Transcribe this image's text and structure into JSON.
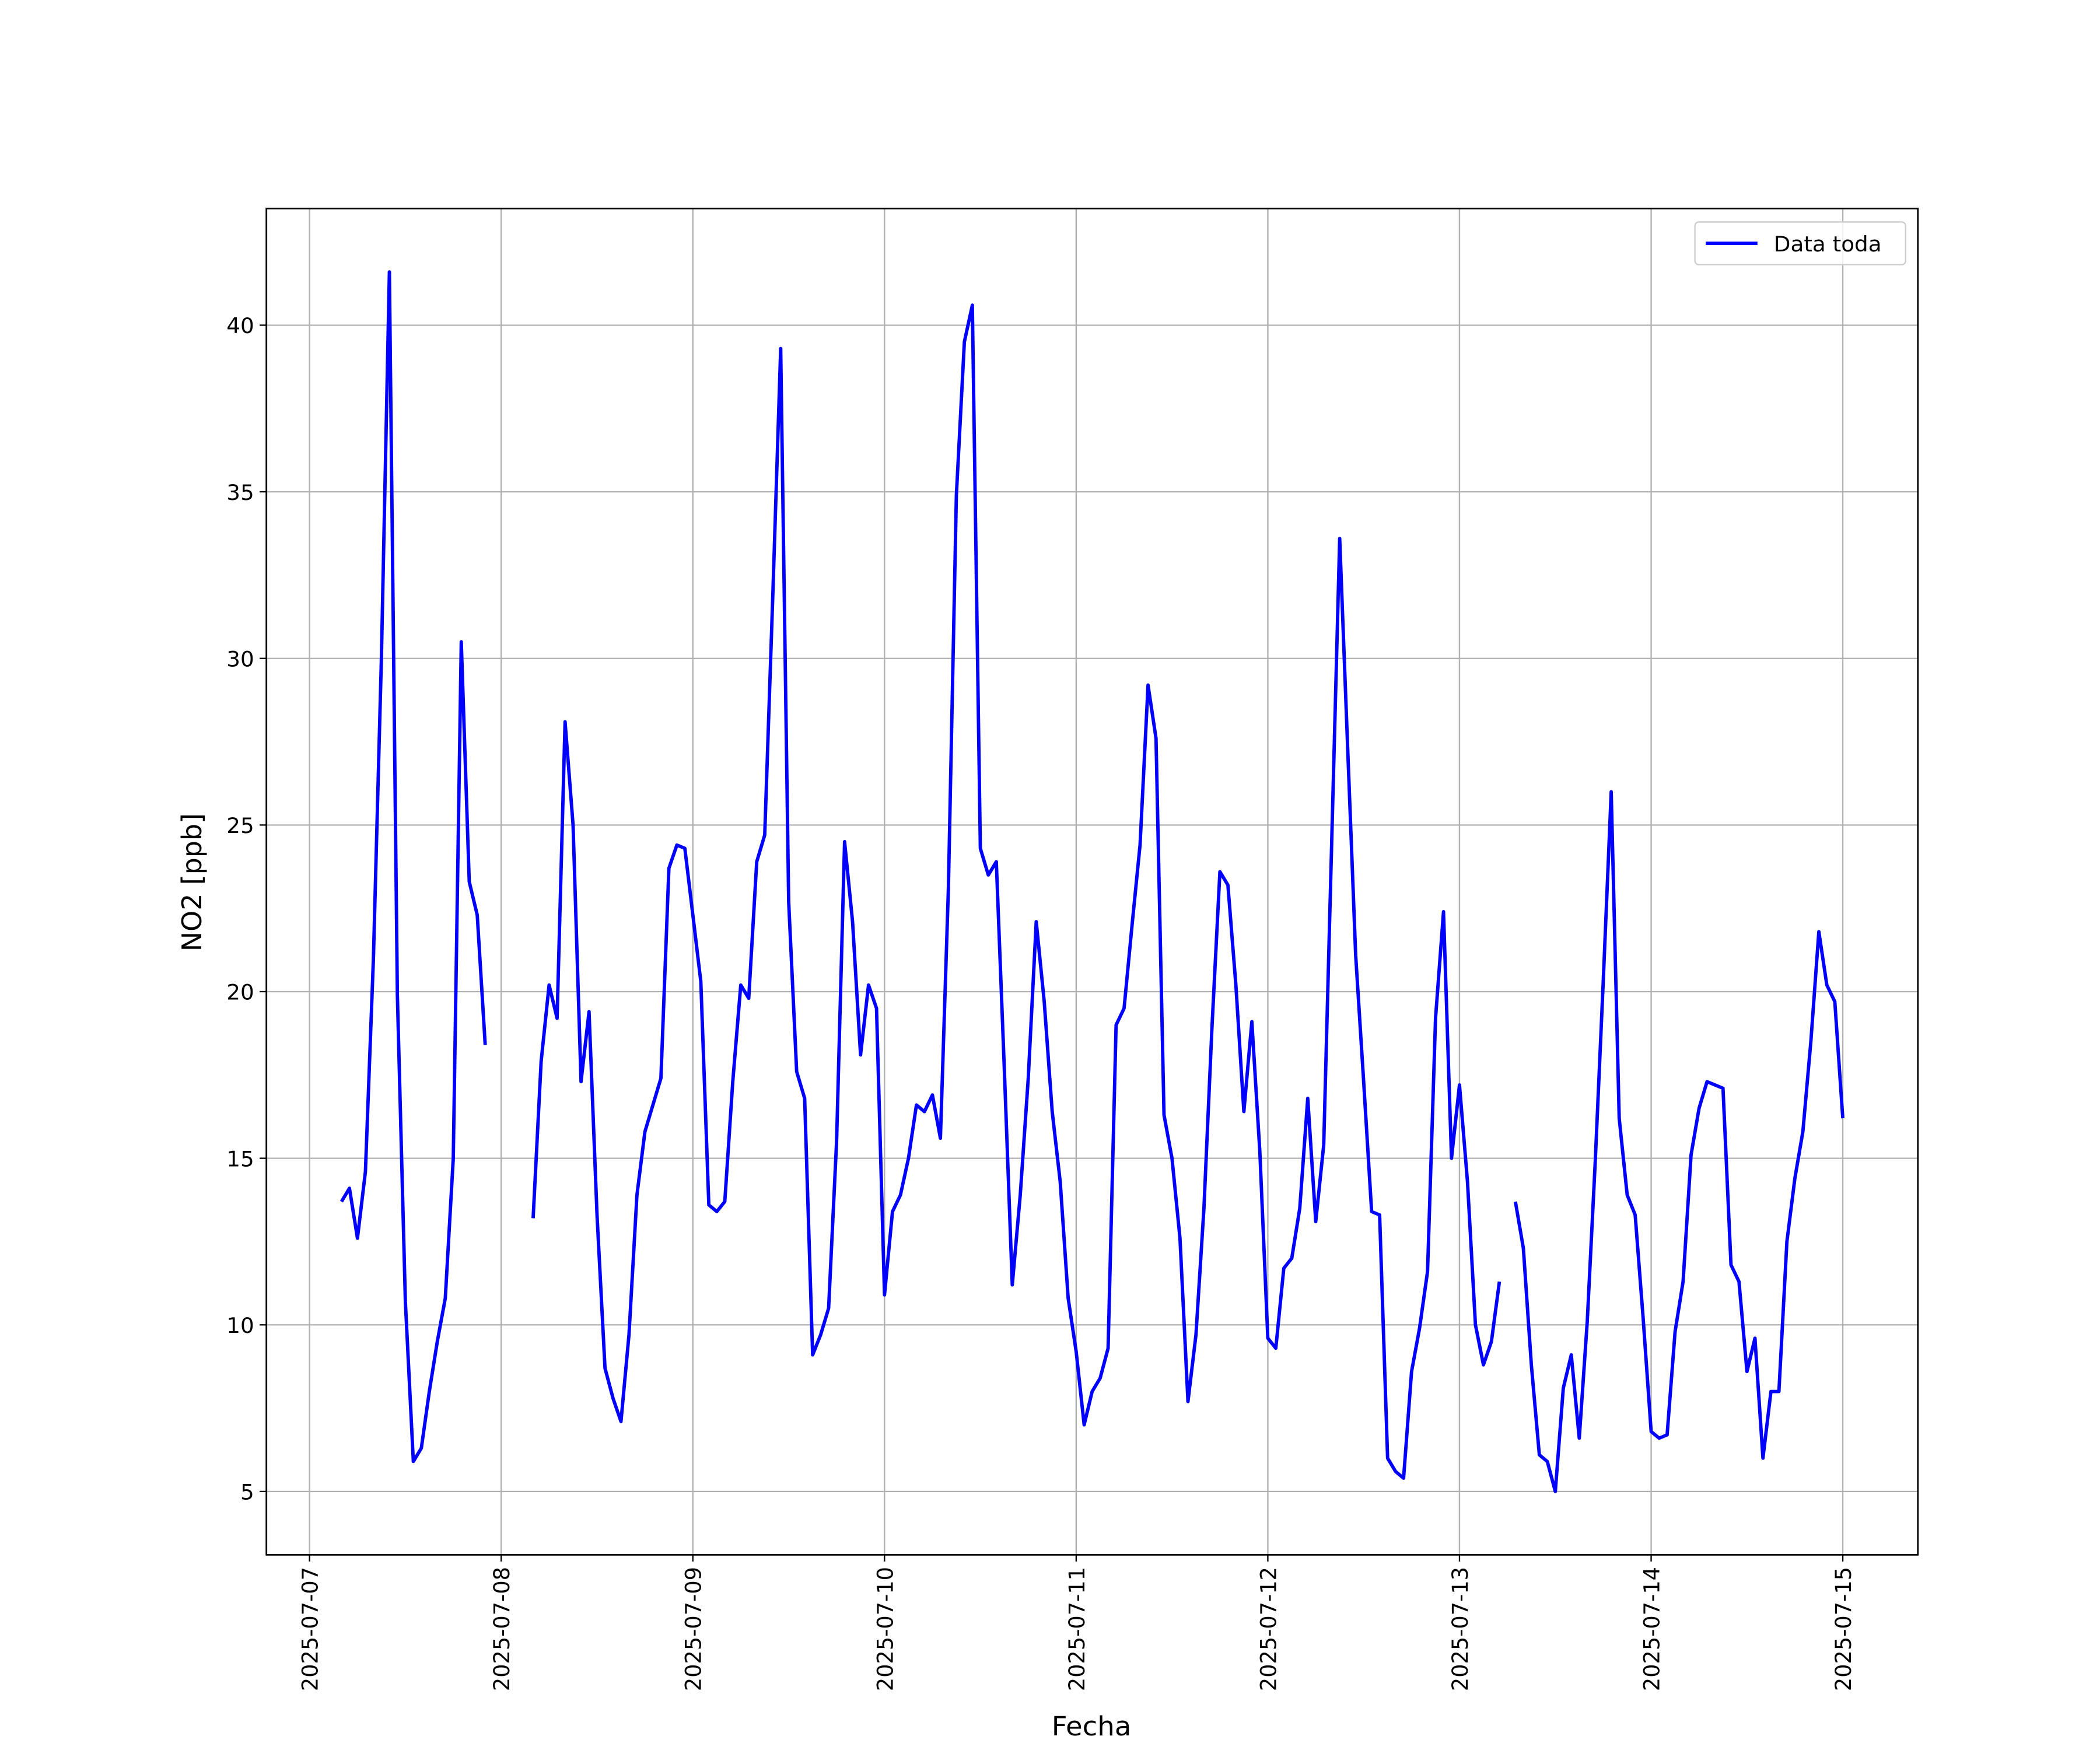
{
  "chart_data": {
    "type": "line",
    "x_label": "Fecha",
    "y_label": "NO2 [ppb]",
    "x": [
      "2025-07-07 04:00",
      "2025-07-07 05:00",
      "2025-07-07 06:00",
      "2025-07-07 07:00",
      "2025-07-07 08:00",
      "2025-07-07 09:00",
      "2025-07-07 10:00",
      "2025-07-07 11:00",
      "2025-07-07 12:00",
      "2025-07-07 13:00",
      "2025-07-07 14:00",
      "2025-07-07 15:00",
      "2025-07-07 16:00",
      "2025-07-07 17:00",
      "2025-07-07 18:00",
      "2025-07-07 19:00",
      "2025-07-07 20:00",
      "2025-07-07 21:00",
      "2025-07-07 22:00",
      "2025-07-07 23:00",
      "2025-07-08 00:00",
      "2025-07-08 01:00",
      "2025-07-08 02:00",
      "2025-07-08 03:00",
      "2025-07-08 04:00",
      "2025-07-08 05:00",
      "2025-07-08 06:00",
      "2025-07-08 07:00",
      "2025-07-08 08:00",
      "2025-07-08 09:00",
      "2025-07-08 10:00",
      "2025-07-08 11:00",
      "2025-07-08 12:00",
      "2025-07-08 13:00",
      "2025-07-08 14:00",
      "2025-07-08 15:00",
      "2025-07-08 16:00",
      "2025-07-08 17:00",
      "2025-07-08 18:00",
      "2025-07-08 19:00",
      "2025-07-08 20:00",
      "2025-07-08 21:00",
      "2025-07-08 22:00",
      "2025-07-08 23:00",
      "2025-07-09 00:00",
      "2025-07-09 01:00",
      "2025-07-09 02:00",
      "2025-07-09 03:00",
      "2025-07-09 04:00",
      "2025-07-09 05:00",
      "2025-07-09 06:00",
      "2025-07-09 07:00",
      "2025-07-09 08:00",
      "2025-07-09 09:00",
      "2025-07-09 10:00",
      "2025-07-09 11:00",
      "2025-07-09 12:00",
      "2025-07-09 13:00",
      "2025-07-09 14:00",
      "2025-07-09 15:00",
      "2025-07-09 16:00",
      "2025-07-09 17:00",
      "2025-07-09 18:00",
      "2025-07-09 19:00",
      "2025-07-09 20:00",
      "2025-07-09 21:00",
      "2025-07-09 22:00",
      "2025-07-09 23:00",
      "2025-07-10 00:00",
      "2025-07-10 01:00",
      "2025-07-10 02:00",
      "2025-07-10 03:00",
      "2025-07-10 04:00",
      "2025-07-10 05:00",
      "2025-07-10 06:00",
      "2025-07-10 07:00",
      "2025-07-10 08:00",
      "2025-07-10 09:00",
      "2025-07-10 10:00",
      "2025-07-10 11:00",
      "2025-07-10 12:00",
      "2025-07-10 13:00",
      "2025-07-10 14:00",
      "2025-07-10 15:00",
      "2025-07-10 16:00",
      "2025-07-10 17:00",
      "2025-07-10 18:00",
      "2025-07-10 19:00",
      "2025-07-10 20:00",
      "2025-07-10 21:00",
      "2025-07-10 22:00",
      "2025-07-10 23:00",
      "2025-07-11 00:00",
      "2025-07-11 01:00",
      "2025-07-11 02:00",
      "2025-07-11 03:00",
      "2025-07-11 04:00",
      "2025-07-11 05:00",
      "2025-07-11 06:00",
      "2025-07-11 07:00",
      "2025-07-11 08:00",
      "2025-07-11 09:00",
      "2025-07-11 10:00",
      "2025-07-11 11:00",
      "2025-07-11 12:00",
      "2025-07-11 13:00",
      "2025-07-11 14:00",
      "2025-07-11 15:00",
      "2025-07-11 16:00",
      "2025-07-11 17:00",
      "2025-07-11 18:00",
      "2025-07-11 19:00",
      "2025-07-11 20:00",
      "2025-07-11 21:00",
      "2025-07-11 22:00",
      "2025-07-11 23:00",
      "2025-07-12 00:00",
      "2025-07-12 01:00",
      "2025-07-12 02:00",
      "2025-07-12 03:00",
      "2025-07-12 04:00",
      "2025-07-12 05:00",
      "2025-07-12 06:00",
      "2025-07-12 07:00",
      "2025-07-12 08:00",
      "2025-07-12 09:00",
      "2025-07-12 10:00",
      "2025-07-12 11:00",
      "2025-07-12 12:00",
      "2025-07-12 13:00",
      "2025-07-12 14:00",
      "2025-07-12 15:00",
      "2025-07-12 16:00",
      "2025-07-12 17:00",
      "2025-07-12 18:00",
      "2025-07-12 19:00",
      "2025-07-12 20:00",
      "2025-07-12 21:00",
      "2025-07-12 22:00",
      "2025-07-12 23:00",
      "2025-07-13 00:00",
      "2025-07-13 01:00",
      "2025-07-13 02:00",
      "2025-07-13 03:00",
      "2025-07-13 04:00",
      "2025-07-13 05:00",
      "2025-07-13 06:00",
      "2025-07-13 07:00",
      "2025-07-13 08:00",
      "2025-07-13 09:00",
      "2025-07-13 10:00",
      "2025-07-13 11:00",
      "2025-07-13 12:00",
      "2025-07-13 13:00",
      "2025-07-13 14:00",
      "2025-07-13 15:00",
      "2025-07-13 16:00",
      "2025-07-13 17:00",
      "2025-07-13 18:00",
      "2025-07-13 19:00",
      "2025-07-13 20:00",
      "2025-07-13 21:00",
      "2025-07-13 22:00",
      "2025-07-13 23:00",
      "2025-07-14 00:00",
      "2025-07-14 01:00",
      "2025-07-14 02:00",
      "2025-07-14 03:00",
      "2025-07-14 04:00",
      "2025-07-14 05:00",
      "2025-07-14 06:00",
      "2025-07-14 07:00",
      "2025-07-14 08:00",
      "2025-07-14 09:00",
      "2025-07-14 10:00",
      "2025-07-14 11:00",
      "2025-07-14 12:00",
      "2025-07-14 13:00",
      "2025-07-14 14:00",
      "2025-07-14 15:00",
      "2025-07-14 16:00",
      "2025-07-14 17:00",
      "2025-07-14 18:00",
      "2025-07-14 19:00",
      "2025-07-14 20:00",
      "2025-07-14 21:00",
      "2025-07-14 22:00",
      "2025-07-14 23:00",
      "2025-07-15 00:00"
    ],
    "series": [
      {
        "name": "Data toda",
        "color": "#0000ff",
        "values": [
          13.7,
          14.1,
          12.6,
          14.6,
          21.0,
          30.0,
          41.6,
          19.9,
          10.7,
          5.9,
          6.3,
          8.0,
          9.5,
          10.8,
          15.0,
          30.5,
          23.3,
          22.3,
          18.4,
          null,
          null,
          null,
          null,
          null,
          13.2,
          17.9,
          20.2,
          19.2,
          28.1,
          25.0,
          17.3,
          19.4,
          13.3,
          8.7,
          7.8,
          7.1,
          9.7,
          13.9,
          15.8,
          16.6,
          17.4,
          23.7,
          24.4,
          24.3,
          22.3,
          20.3,
          13.6,
          13.4,
          13.7,
          17.3,
          20.2,
          19.8,
          23.9,
          24.7,
          31.8,
          39.3,
          22.7,
          17.6,
          16.8,
          9.1,
          9.7,
          10.5,
          15.5,
          24.5,
          22.1,
          18.1,
          20.2,
          19.5,
          10.9,
          13.4,
          13.9,
          15.0,
          16.6,
          16.4,
          16.9,
          15.6,
          23.1,
          34.9,
          39.5,
          40.6,
          24.3,
          23.5,
          23.9,
          17.7,
          11.2,
          13.9,
          17.4,
          22.1,
          19.7,
          16.4,
          14.3,
          10.8,
          9.2,
          7.0,
          8.0,
          8.4,
          9.3,
          19.0,
          19.5,
          22.0,
          24.4,
          29.2,
          27.6,
          16.3,
          15.0,
          12.6,
          7.7,
          9.7,
          13.5,
          18.9,
          23.6,
          23.2,
          20.2,
          16.4,
          19.1,
          15.2,
          9.6,
          9.3,
          11.7,
          12.0,
          13.5,
          16.8,
          13.1,
          15.4,
          24.5,
          33.6,
          27.3,
          21.1,
          17.3,
          13.4,
          13.3,
          6.0,
          5.6,
          5.4,
          8.6,
          9.9,
          11.6,
          19.2,
          22.4,
          15.0,
          17.2,
          14.3,
          10.0,
          8.8,
          9.5,
          11.3,
          null,
          13.7,
          12.3,
          8.8,
          6.1,
          5.9,
          5.0,
          8.1,
          9.1,
          6.6,
          10.1,
          14.9,
          20.3,
          26.0,
          16.2,
          13.9,
          13.3,
          10.2,
          6.8,
          6.6,
          6.7,
          9.8,
          11.3,
          15.1,
          16.5,
          17.3,
          17.2,
          17.1,
          11.8,
          11.3,
          8.6,
          9.6,
          6.0,
          8.0,
          8.0,
          12.5,
          14.4,
          15.8,
          18.5,
          21.8,
          20.2,
          19.7,
          16.2
        ]
      }
    ],
    "xlim": [
      "2025-07-06 18:36",
      "2025-07-15 09:24"
    ],
    "xticks": [
      "2025-07-07",
      "2025-07-08",
      "2025-07-09",
      "2025-07-10",
      "2025-07-11",
      "2025-07-12",
      "2025-07-13",
      "2025-07-14",
      "2025-07-15"
    ],
    "ylim": [
      3.1,
      43.5
    ],
    "yticks": [
      5,
      10,
      15,
      20,
      25,
      30,
      35,
      40
    ],
    "grid": true,
    "legend": "upper-right"
  }
}
